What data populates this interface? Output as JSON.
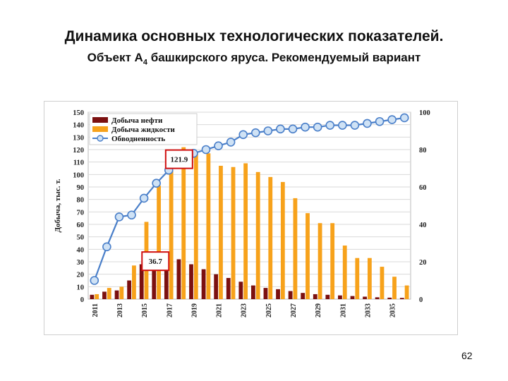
{
  "slide": {
    "title": "Динамика основных технологических показателей.",
    "subtitle_main": "Объект А",
    "subtitle_sub": "4",
    "subtitle_rest": " башкирского яруса. Рекомендуемый вариант",
    "page_number": "62"
  },
  "colors": {
    "oil": "#7b1010",
    "liquid": "#f7a21b",
    "watercut_line": "#4a7fc9",
    "watercut_marker_fill": "#cfe2f5",
    "callout_border": "#d01010"
  },
  "chart_data": {
    "type": "bar+line",
    "ylabel": "Добыча, тыс. т.",
    "ylim": [
      0,
      150
    ],
    "y_ticks": [
      0,
      10,
      20,
      30,
      40,
      50,
      60,
      70,
      80,
      90,
      100,
      110,
      120,
      130,
      140,
      150
    ],
    "y2lim": [
      0,
      100
    ],
    "y2_ticks": [
      0,
      20,
      40,
      60,
      80,
      100
    ],
    "x": [
      2011,
      2012,
      2013,
      2014,
      2015,
      2016,
      2017,
      2018,
      2019,
      2020,
      2021,
      2022,
      2023,
      2024,
      2025,
      2026,
      2027,
      2028,
      2029,
      2030,
      2031,
      2032,
      2033,
      2034,
      2035,
      2036
    ],
    "x_tick_labels": [
      "2011",
      "2013",
      "2015",
      "2017",
      "2019",
      "2021",
      "2023",
      "2025",
      "2027",
      "2029",
      "2031",
      "2033",
      "2035"
    ],
    "legend_position": "top-left",
    "series": [
      {
        "name": "Добыча нефти",
        "kind": "bar",
        "values": [
          3.5,
          6,
          7,
          15,
          28,
          36,
          36.7,
          32,
          28,
          24,
          20,
          17,
          14,
          11,
          9,
          8,
          6.5,
          5,
          4,
          3.5,
          3,
          2.5,
          2,
          1.5,
          1.2,
          1
        ]
      },
      {
        "name": "Добыча жидкости",
        "kind": "bar",
        "values": [
          4,
          9,
          10,
          27,
          62,
          91,
          104,
          121.9,
          117,
          117,
          107,
          106,
          109,
          102,
          98,
          94,
          81,
          69,
          61,
          61,
          43,
          33,
          33,
          26,
          18,
          11
        ]
      },
      {
        "name": "Обводненность",
        "kind": "line",
        "axis": "right",
        "values": [
          10,
          28,
          44,
          45,
          54,
          62,
          69,
          75,
          78,
          80,
          82,
          84,
          88,
          89,
          90,
          91,
          91,
          92,
          92,
          93,
          93,
          93,
          94,
          95,
          96,
          97
        ]
      }
    ],
    "annotations": [
      {
        "text": "121.9",
        "x": 2018,
        "series": "Добыча жидкости"
      },
      {
        "text": "36.7",
        "x": 2017,
        "series": "Добыча нефти"
      }
    ]
  }
}
